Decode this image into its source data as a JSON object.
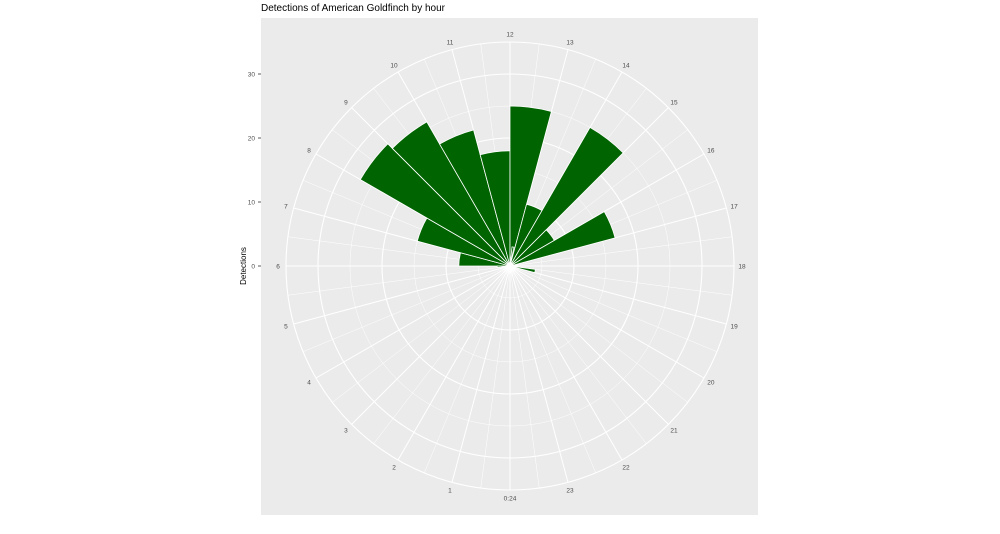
{
  "chart_data": {
    "type": "bar",
    "subtype": "polar-rose",
    "title": "Detections of American Goldfinch by hour",
    "ylabel": "Detections",
    "ylim": [
      0,
      35
    ],
    "y_ticks": [
      0,
      10,
      20,
      30
    ],
    "x_tick_labels": [
      "0:24",
      "1",
      "2",
      "3",
      "4",
      "5",
      "6",
      "7",
      "8",
      "9",
      "10",
      "11",
      "12",
      "13",
      "14",
      "15",
      "16",
      "17",
      "18",
      "19",
      "20",
      "21",
      "22",
      "23"
    ],
    "categories": [
      "0",
      "1",
      "2",
      "3",
      "4",
      "5",
      "6",
      "7",
      "8",
      "9",
      "10",
      "11",
      "12",
      "13",
      "14",
      "15",
      "16",
      "17",
      "18",
      "19",
      "20",
      "21",
      "22",
      "23"
    ],
    "values": [
      0,
      0,
      0,
      0,
      0,
      0,
      8,
      15,
      27,
      26,
      22,
      18,
      25,
      10,
      25,
      8,
      17,
      0,
      0,
      0,
      0,
      0,
      0,
      0
    ],
    "minor_values": {
      "h12_5": 3,
      "h18_5": 4,
      "h5_5": 2
    },
    "bar_color": "#006400",
    "panel_color": "#EBEBEB",
    "grid_color": "#FFFFFF",
    "grid": true,
    "legend": "none"
  }
}
